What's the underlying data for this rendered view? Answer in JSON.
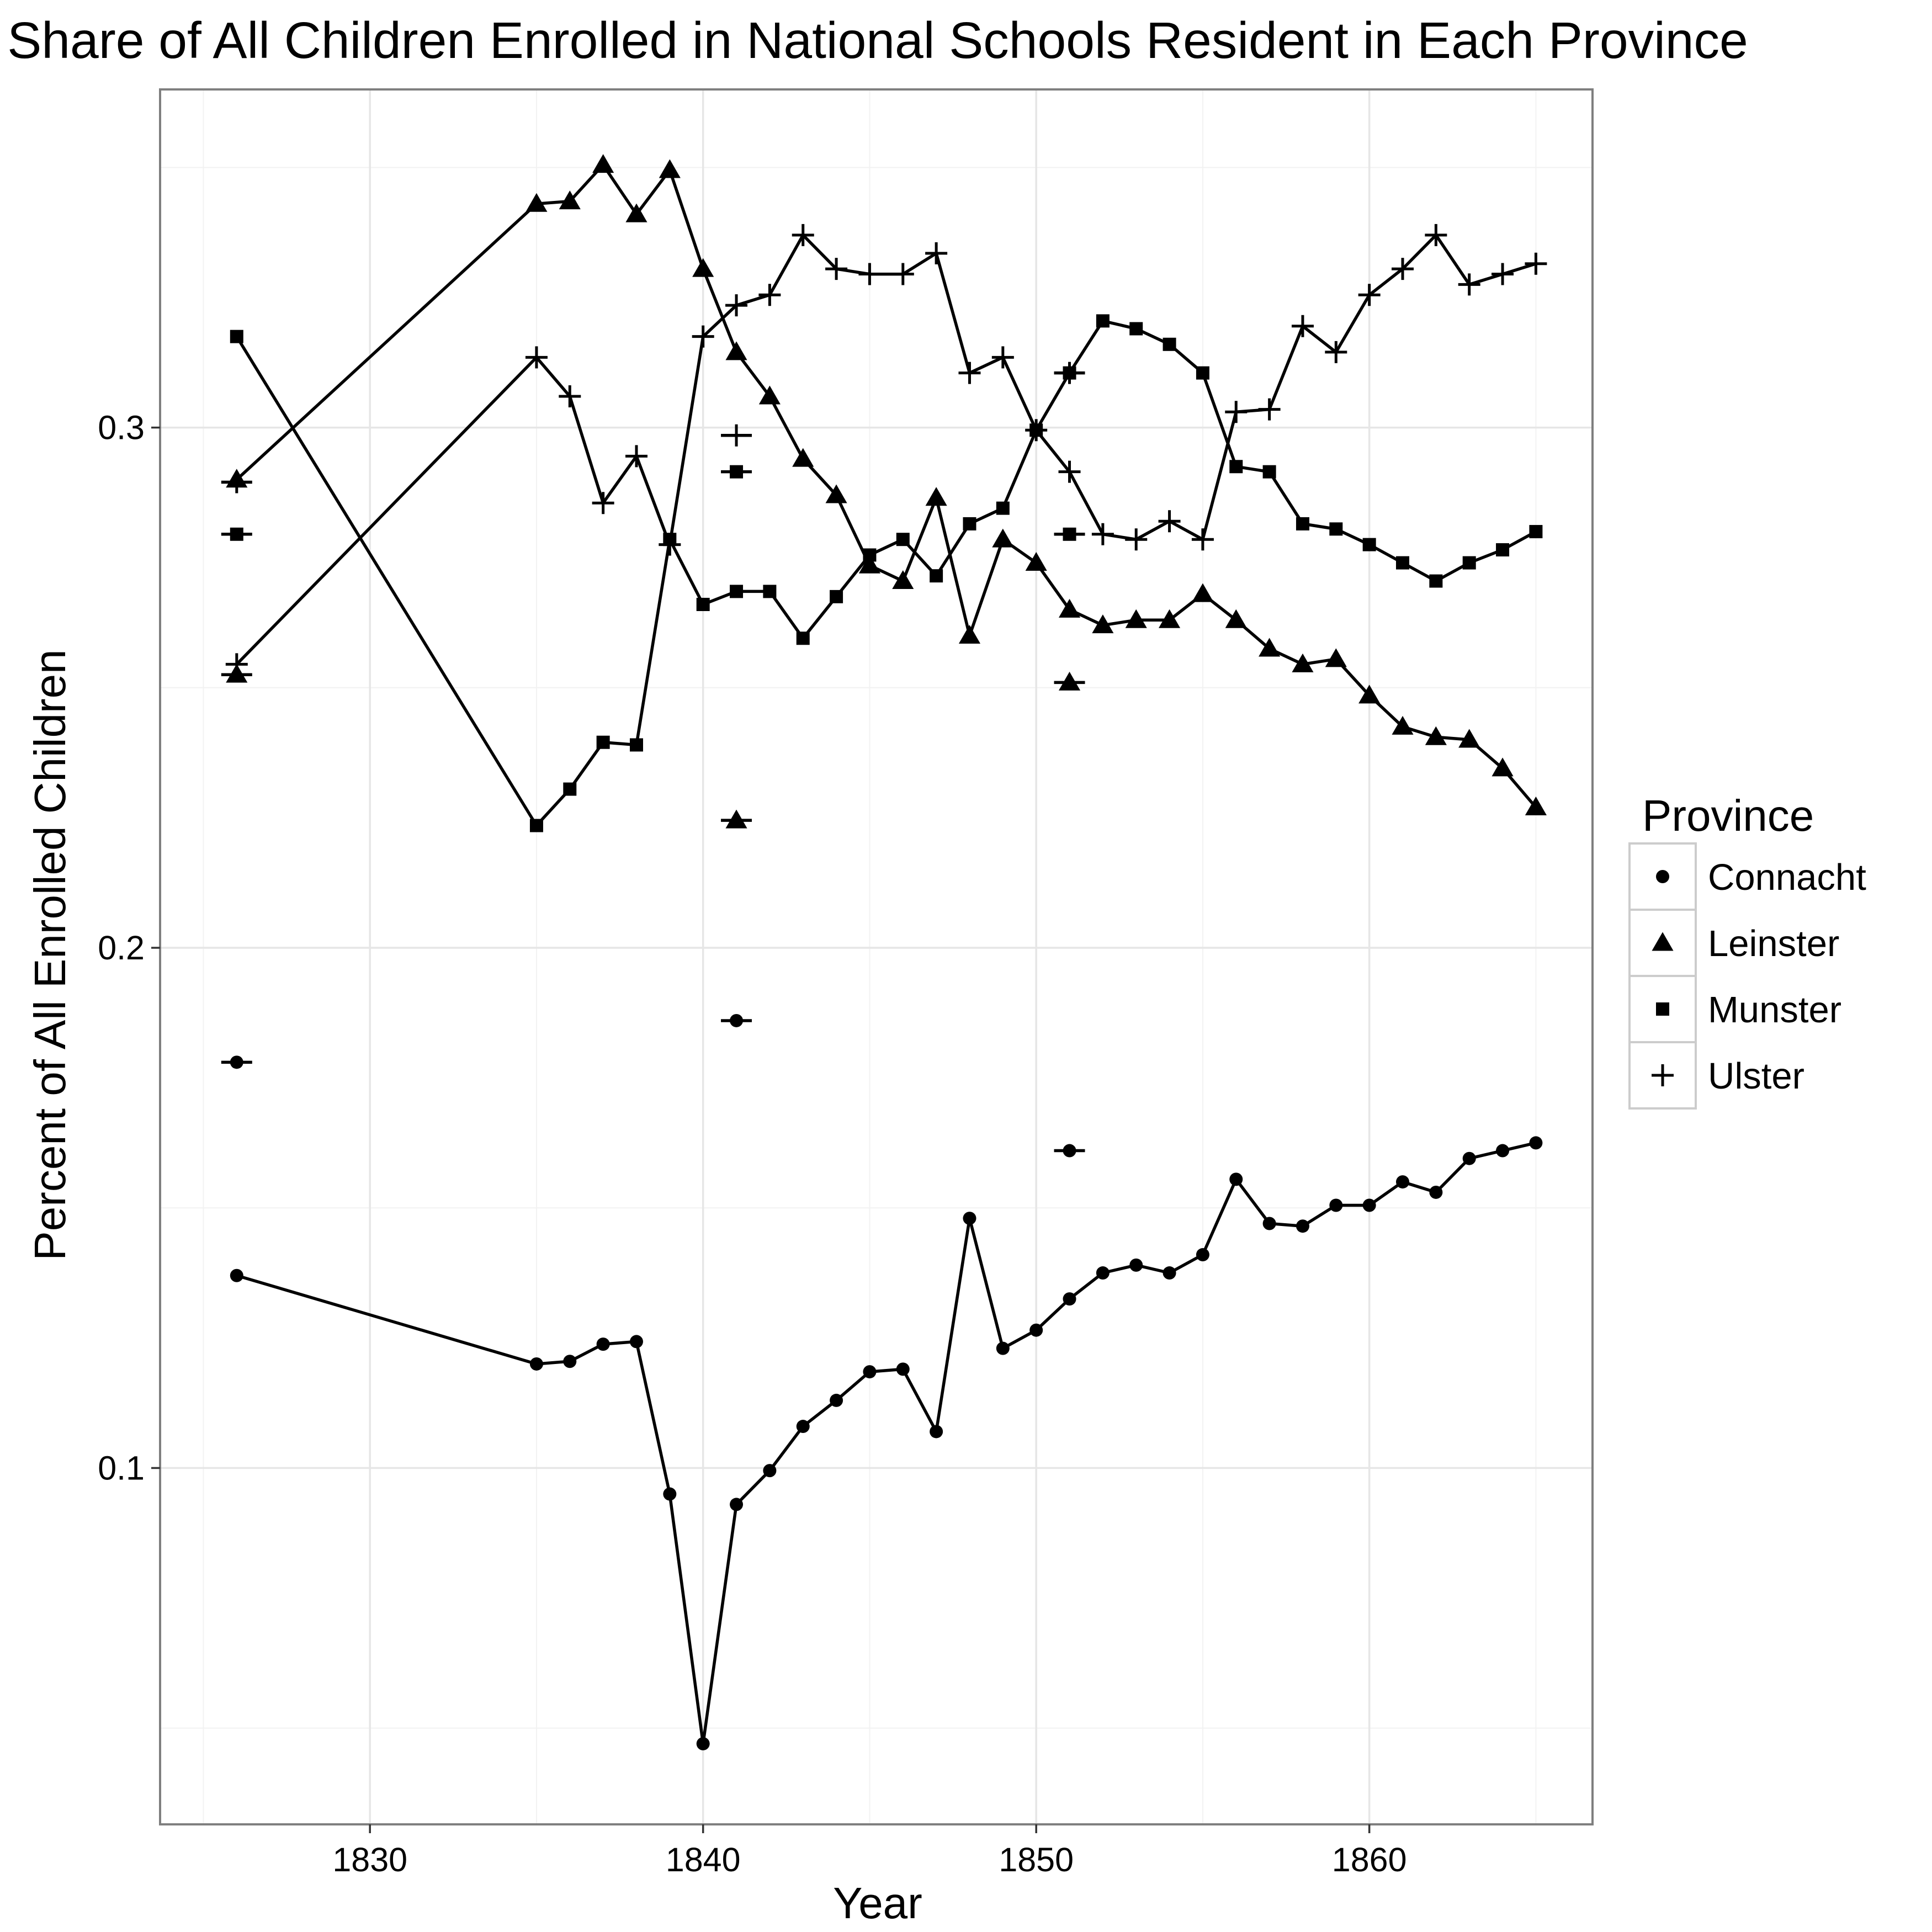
{
  "chart_data": {
    "type": "line",
    "title": "Share of All Children Enrolled in National Schools Resident in Each Province",
    "xlabel": "Year",
    "ylabel": "Percent of All Enrolled Children",
    "xlim": [
      1823.7,
      1866.7
    ],
    "ylim": [
      0.0315,
      0.365
    ],
    "x_ticks": [
      1830,
      1840,
      1850,
      1860
    ],
    "x_tick_labels": [
      "1830",
      "1840",
      "1850",
      "1860"
    ],
    "y_ticks": [
      0.1,
      0.2,
      0.3
    ],
    "y_tick_labels": [
      "0.1",
      "0.2",
      "0.3"
    ],
    "grid": true,
    "legend": {
      "title": "Province",
      "position": "right",
      "entries": [
        {
          "name": "Connacht",
          "shape": "circle"
        },
        {
          "name": "Leinster",
          "shape": "triangle"
        },
        {
          "name": "Munster",
          "shape": "square"
        },
        {
          "name": "Ulster",
          "shape": "plus"
        }
      ]
    },
    "series": [
      {
        "name": "Connacht",
        "shape": "circle",
        "x": [
          1826,
          1835,
          1836,
          1837,
          1838,
          1839,
          1840,
          1841,
          1842,
          1843,
          1844,
          1845,
          1846,
          1847,
          1848,
          1849,
          1850,
          1851,
          1852,
          1853,
          1854,
          1855,
          1856,
          1857,
          1858,
          1859,
          1860,
          1861,
          1862,
          1863,
          1864,
          1865
        ],
        "y": [
          0.137,
          0.12,
          0.1205,
          0.1238,
          0.1243,
          0.095,
          0.047,
          0.093,
          0.0995,
          0.108,
          0.113,
          0.1185,
          0.119,
          0.107,
          0.148,
          0.123,
          0.1265,
          0.1325,
          0.1375,
          0.139,
          0.1375,
          0.141,
          0.1555,
          0.147,
          0.1465,
          0.1505,
          0.1505,
          0.155,
          0.153,
          0.1595,
          0.161,
          0.1625
        ]
      },
      {
        "name": "Leinster",
        "shape": "triangle",
        "x": [
          1826,
          1835,
          1836,
          1837,
          1838,
          1839,
          1840,
          1841,
          1842,
          1843,
          1844,
          1845,
          1846,
          1847,
          1848,
          1849,
          1850,
          1851,
          1852,
          1853,
          1854,
          1855,
          1856,
          1857,
          1858,
          1859,
          1860,
          1861,
          1862,
          1863,
          1864,
          1865
        ],
        "y": [
          0.29,
          0.343,
          0.3435,
          0.3505,
          0.341,
          0.3495,
          0.3305,
          0.3145,
          0.306,
          0.294,
          0.287,
          0.2735,
          0.2705,
          0.2865,
          0.26,
          0.2785,
          0.274,
          0.265,
          0.262,
          0.263,
          0.263,
          0.268,
          0.263,
          0.2575,
          0.2545,
          0.2555,
          0.2485,
          0.2425,
          0.2405,
          0.24,
          0.2345,
          0.227
        ]
      },
      {
        "name": "Munster",
        "shape": "square",
        "x": [
          1826,
          1835,
          1836,
          1837,
          1838,
          1839,
          1840,
          1841,
          1842,
          1843,
          1844,
          1845,
          1846,
          1847,
          1848,
          1849,
          1850,
          1851,
          1852,
          1853,
          1854,
          1855,
          1856,
          1857,
          1858,
          1859,
          1860,
          1861,
          1862,
          1863,
          1864,
          1865
        ],
        "y": [
          0.3175,
          0.2235,
          0.2305,
          0.2395,
          0.239,
          0.2785,
          0.266,
          0.2685,
          0.2685,
          0.2595,
          0.2675,
          0.2755,
          0.2785,
          0.2715,
          0.2815,
          0.2845,
          0.2995,
          0.3105,
          0.3205,
          0.319,
          0.316,
          0.3105,
          0.2925,
          0.2915,
          0.2815,
          0.2805,
          0.2775,
          0.274,
          0.2705,
          0.274,
          0.2765,
          0.28
        ]
      },
      {
        "name": "Ulster",
        "shape": "plus",
        "x": [
          1826,
          1835,
          1836,
          1837,
          1838,
          1839,
          1840,
          1841,
          1842,
          1843,
          1844,
          1845,
          1846,
          1847,
          1848,
          1849,
          1850,
          1851,
          1852,
          1853,
          1854,
          1855,
          1856,
          1857,
          1858,
          1859,
          1860,
          1861,
          1862,
          1863,
          1864,
          1865
        ],
        "y": [
          0.2545,
          0.3135,
          0.306,
          0.2855,
          0.2945,
          0.2775,
          0.3175,
          0.3235,
          0.3255,
          0.337,
          0.3305,
          0.3295,
          0.3295,
          0.3335,
          0.3105,
          0.3135,
          0.2995,
          0.2915,
          0.2795,
          0.2785,
          0.282,
          0.2785,
          0.303,
          0.3035,
          0.3195,
          0.3145,
          0.3255,
          0.3305,
          0.337,
          0.3275,
          0.3295,
          0.3315
        ]
      }
    ],
    "standalone_points": [
      {
        "series": "Connacht",
        "shape": "circle",
        "x": 1826,
        "y": 0.178
      },
      {
        "series": "Leinster",
        "shape": "triangle",
        "x": 1826,
        "y": 0.2525
      },
      {
        "series": "Munster",
        "shape": "square",
        "x": 1826,
        "y": 0.2795
      },
      {
        "series": "Ulster",
        "shape": "plus",
        "x": 1826,
        "y": 0.2895
      },
      {
        "series": "Connacht",
        "shape": "circle",
        "x": 1841,
        "y": 0.186
      },
      {
        "series": "Leinster",
        "shape": "triangle",
        "x": 1841,
        "y": 0.2245
      },
      {
        "series": "Munster",
        "shape": "square",
        "x": 1841,
        "y": 0.2915
      },
      {
        "series": "Ulster",
        "shape": "plus",
        "x": 1841,
        "y": 0.2985
      },
      {
        "series": "Connacht",
        "shape": "circle",
        "x": 1851,
        "y": 0.161
      },
      {
        "series": "Leinster",
        "shape": "triangle",
        "x": 1851,
        "y": 0.251
      },
      {
        "series": "Munster",
        "shape": "square",
        "x": 1851,
        "y": 0.2795
      },
      {
        "series": "Ulster",
        "shape": "plus",
        "x": 1851,
        "y": 0.3105
      }
    ],
    "colors": {
      "line": "#000000",
      "panel_border": "#7f7f7f",
      "grid_major": "#e6e6e6",
      "grid_minor": "#f2f2f2",
      "legend_key_border": "#cccccc",
      "background": "#ffffff"
    }
  }
}
